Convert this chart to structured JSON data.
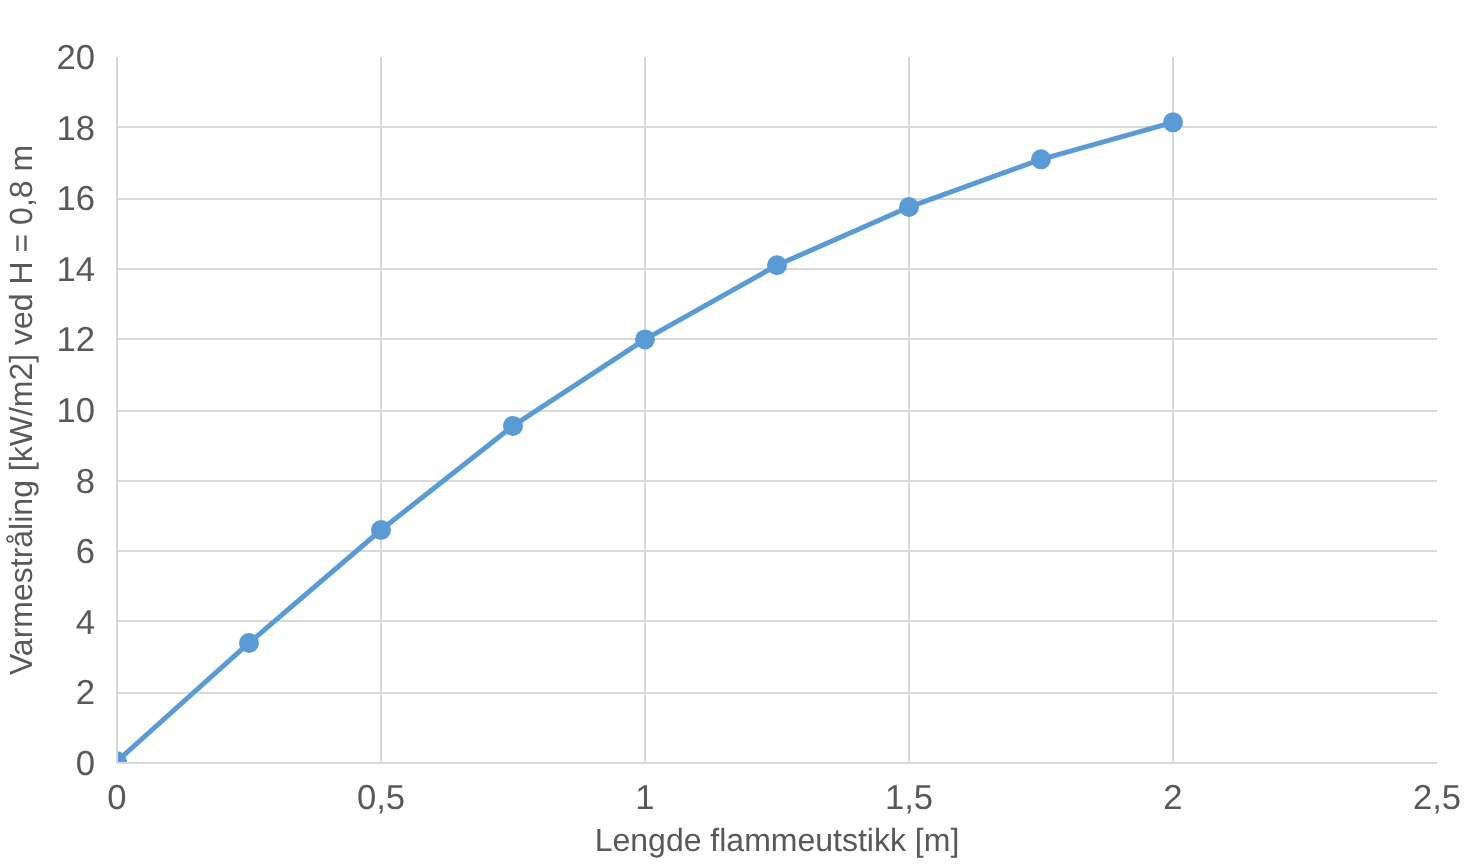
{
  "chart_data": {
    "type": "line",
    "xlabel": "Lengde flammeutstikk [m]",
    "ylabel": "Varmestråling [kW/m2] ved H = 0,8 m",
    "x": [
      0,
      0.25,
      0.5,
      0.75,
      1,
      1.25,
      1.5,
      1.75,
      2
    ],
    "series": [
      {
        "color": "#5b9bd5",
        "values": [
          0.05,
          3.4,
          6.6,
          9.55,
          12.0,
          14.1,
          15.75,
          17.1,
          18.15
        ]
      }
    ],
    "xlim": [
      0,
      2.5
    ],
    "xticks": [
      0,
      {
        "value": 0.5,
        "label": "0,5"
      },
      1,
      {
        "value": 1.5,
        "label": "1,5"
      },
      2,
      {
        "value": 2.5,
        "label": "2,5"
      }
    ],
    "ylim": [
      0,
      20
    ],
    "yticks": [
      0,
      2,
      4,
      6,
      8,
      10,
      12,
      14,
      16,
      18,
      20
    ],
    "grid": true,
    "marker": "circle",
    "line_style": "solid"
  }
}
